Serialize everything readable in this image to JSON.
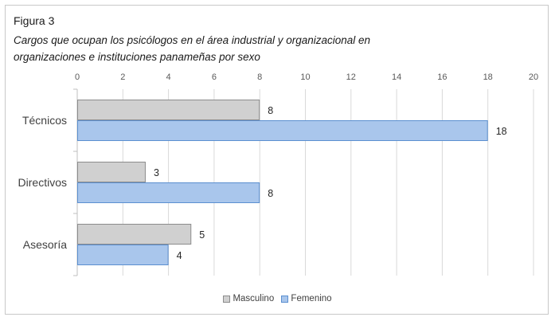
{
  "figure": {
    "label": "Figura 3",
    "caption_line1": "Cargos que ocupan los psicólogos en el área industrial y organizacional en",
    "caption_line2": "organizaciones e instituciones panameñas por sexo"
  },
  "chart_data": {
    "type": "bar",
    "orientation": "horizontal",
    "categories": [
      "Técnicos",
      "Directivos",
      "Asesoría"
    ],
    "series": [
      {
        "name": "Masculino",
        "values": [
          8,
          3,
          5
        ],
        "color": "#d0d0d0",
        "stroke": "#8c8c8c"
      },
      {
        "name": "Femenino",
        "values": [
          18,
          8,
          4
        ],
        "color": "#a9c6ec",
        "stroke": "#5b8fd0"
      }
    ],
    "xlim": [
      0,
      20
    ],
    "xticks": [
      0,
      2,
      4,
      6,
      8,
      10,
      12,
      14,
      16,
      18,
      20
    ],
    "xaxis_position": "top",
    "grid": true,
    "legend_position": "bottom",
    "title": "",
    "xlabel": "",
    "ylabel": ""
  }
}
